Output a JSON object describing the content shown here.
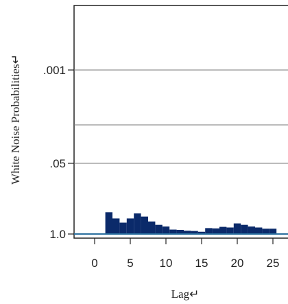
{
  "chart_data": {
    "type": "bar",
    "title": "",
    "xlabel": "Lag↵",
    "ylabel": "White Noise Probabilities↵",
    "x_ticks": [
      0,
      5,
      10,
      15,
      20,
      25
    ],
    "y_ticks": [
      ".001",
      ".05",
      "1.0"
    ],
    "reference_lines": [
      ".001",
      ".01",
      ".05"
    ],
    "y_scale": "reversed-log",
    "lags": [
      2,
      3,
      4,
      5,
      6,
      7,
      8,
      9,
      10,
      11,
      12,
      13,
      14,
      15,
      16,
      17,
      18,
      19,
      20,
      21,
      22,
      23,
      24,
      25
    ],
    "values": [
      0.4,
      0.52,
      0.62,
      0.52,
      0.42,
      0.48,
      0.59,
      0.68,
      0.73,
      0.83,
      0.84,
      0.87,
      0.88,
      0.91,
      0.78,
      0.79,
      0.74,
      0.76,
      0.64,
      0.68,
      0.73,
      0.76,
      0.8,
      0.8
    ],
    "bar_color": "#0b2a6a",
    "grid": false
  }
}
